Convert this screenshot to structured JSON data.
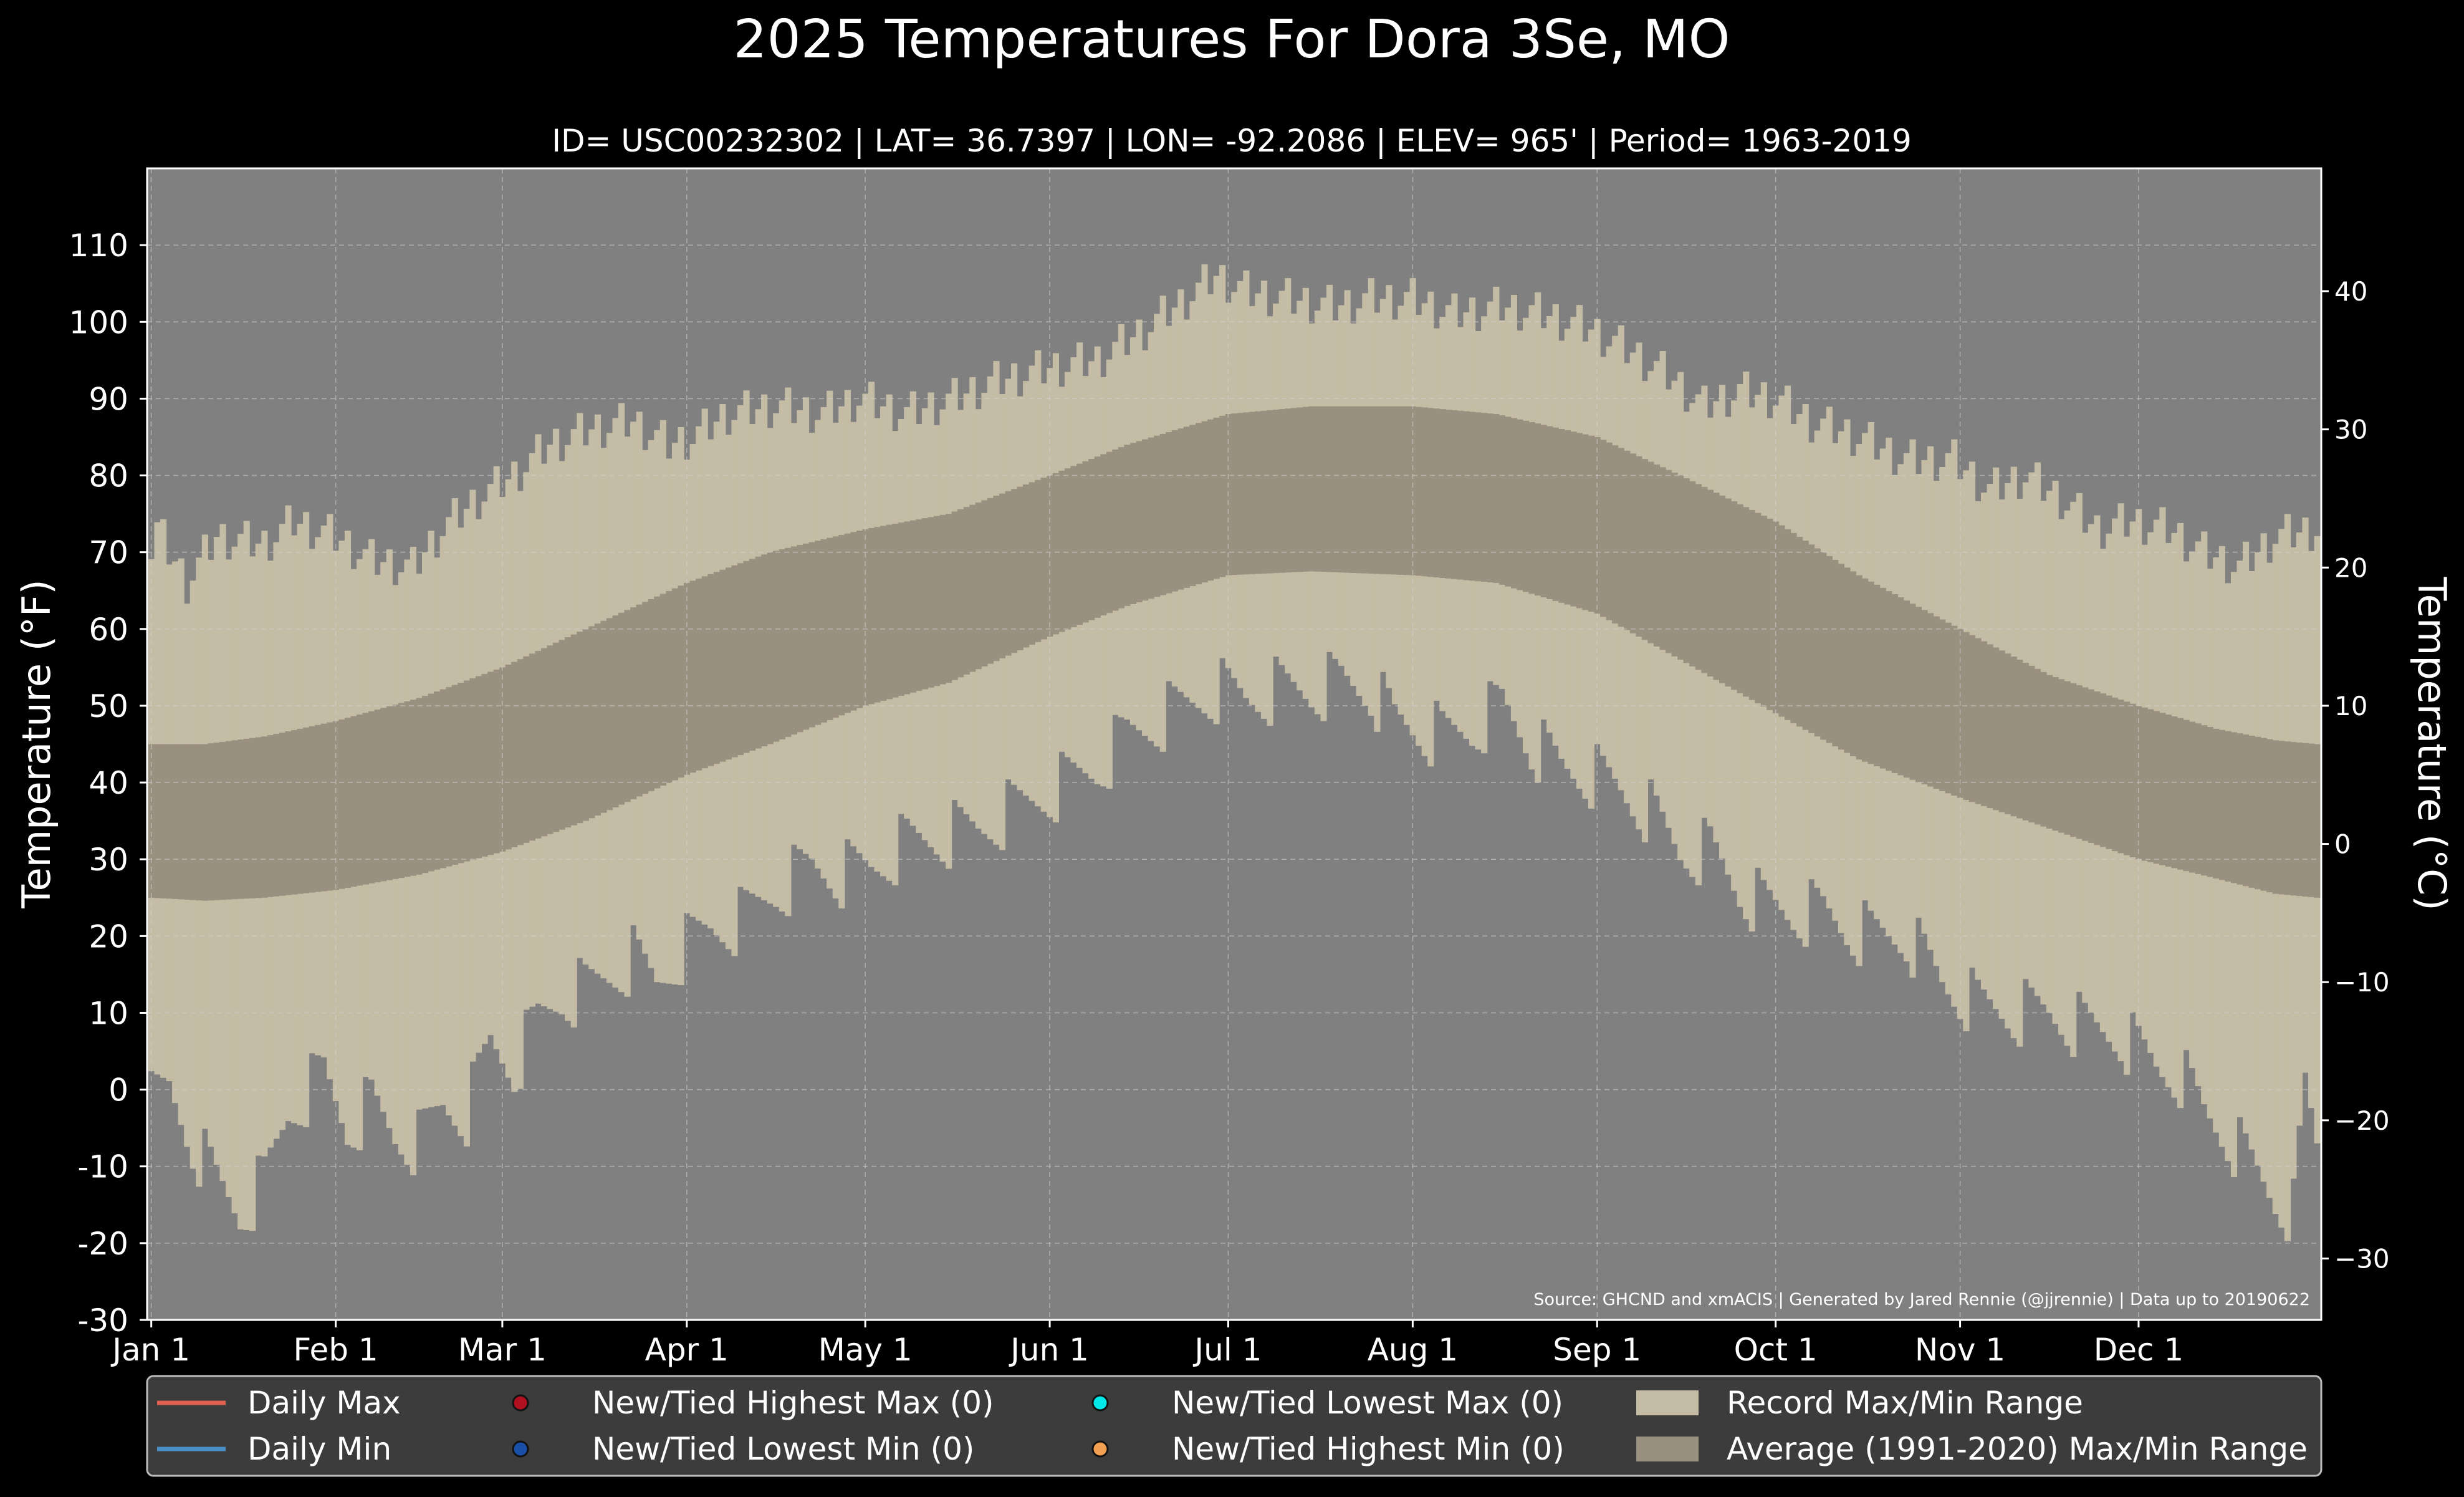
{
  "chart_data": {
    "type": "area",
    "title": "2025 Temperatures For Dora 3Se, MO",
    "subtitle": "ID= USC00232302 | LAT= 36.7397 | LON= -92.2086 | ELEV= 965' | Period= 1963-2019",
    "ylabel": "Temperature ($^\\circ$F)",
    "ylabel_display": "Temperature (°F)",
    "y2label": "Temperature (°C)",
    "ylim": [
      -30,
      120
    ],
    "y_ticks": [
      "-30",
      "-20",
      "-10",
      "0",
      "10",
      "20",
      "30",
      "40",
      "50",
      "60",
      "70",
      "80",
      "90",
      "100",
      "110"
    ],
    "y2_ticks": [
      "−30",
      "−20",
      "−10",
      "0",
      "10",
      "20",
      "30",
      "40"
    ],
    "x_ticks": [
      "Jan 1",
      "Feb 1",
      "Mar 1",
      "Apr 1",
      "May 1",
      "Jun 1",
      "Jul 1",
      "Aug 1",
      "Sep 1",
      "Oct 1",
      "Nov 1",
      "Dec 1"
    ],
    "grid": true,
    "legend_position": "bottom",
    "source": "Source: GHCND and xmACIS | Generated by Jared Rennie (@jjrennie) | Data up to 20190622",
    "legend": [
      {
        "label": "Daily Max",
        "kind": "line",
        "color": "#e06050"
      },
      {
        "label": "New/Tied Highest Max (0)",
        "kind": "dot",
        "color": "#b01020"
      },
      {
        "label": "New/Tied Lowest Max (0)",
        "kind": "dot",
        "color": "#00e8e8"
      },
      {
        "label": "Record Max/Min Range",
        "kind": "patch",
        "color": "#c5bca5"
      },
      {
        "label": "Daily Min",
        "kind": "line",
        "color": "#4a90c8"
      },
      {
        "label": "New/Tied Lowest Min (0)",
        "kind": "dot",
        "color": "#1a4fa8"
      },
      {
        "label": "New/Tied Highest Min (0)",
        "kind": "dot",
        "color": "#f0a050"
      },
      {
        "label": "Average (1991-2020) Max/Min Range",
        "kind": "patch",
        "color": "#9a9080"
      }
    ],
    "series": [
      {
        "name": "Record Max/Min Range",
        "color": "#c5bca5",
        "upper_anchors": [
          [
            1,
            70
          ],
          [
            2,
            73
          ],
          [
            7,
            66
          ],
          [
            12,
            72
          ],
          [
            20,
            71
          ],
          [
            25,
            74
          ],
          [
            32,
            72
          ],
          [
            38,
            69
          ],
          [
            45,
            68
          ],
          [
            50,
            73
          ],
          [
            56,
            77
          ],
          [
            62,
            80
          ],
          [
            68,
            84
          ],
          [
            75,
            86
          ],
          [
            82,
            87
          ],
          [
            88,
            84
          ],
          [
            92,
            85
          ],
          [
            98,
            88
          ],
          [
            106,
            89
          ],
          [
            114,
            88
          ],
          [
            120,
            90
          ],
          [
            128,
            88
          ],
          [
            136,
            90
          ],
          [
            142,
            92
          ],
          [
            152,
            94
          ],
          [
            160,
            95
          ],
          [
            168,
            99
          ],
          [
            175,
            103
          ],
          [
            180,
            106
          ],
          [
            185,
            104
          ],
          [
            192,
            103
          ],
          [
            200,
            102
          ],
          [
            206,
            103
          ],
          [
            213,
            103
          ],
          [
            220,
            101
          ],
          [
            228,
            102
          ],
          [
            235,
            101
          ],
          [
            243,
            99
          ],
          [
            250,
            96
          ],
          [
            256,
            93
          ],
          [
            262,
            89
          ],
          [
            268,
            91
          ],
          [
            274,
            90
          ],
          [
            280,
            87
          ],
          [
            288,
            85
          ],
          [
            296,
            82
          ],
          [
            304,
            82
          ],
          [
            310,
            78
          ],
          [
            316,
            80
          ],
          [
            322,
            77
          ],
          [
            328,
            73
          ],
          [
            334,
            74
          ],
          [
            340,
            73
          ],
          [
            346,
            70
          ],
          [
            352,
            68
          ],
          [
            358,
            72
          ],
          [
            365,
            73
          ]
        ],
        "lower_anchors": [
          [
            1,
            -2
          ],
          [
            4,
            0
          ],
          [
            8,
            -7
          ],
          [
            12,
            -12
          ],
          [
            16,
            -16
          ],
          [
            20,
            -12
          ],
          [
            24,
            -3
          ],
          [
            30,
            2
          ],
          [
            34,
            -5
          ],
          [
            38,
            -2
          ],
          [
            42,
            -6
          ],
          [
            46,
            -7
          ],
          [
            50,
            -2
          ],
          [
            54,
            -3
          ],
          [
            58,
            6
          ],
          [
            62,
            3
          ],
          [
            66,
            9
          ],
          [
            70,
            12
          ],
          [
            74,
            13
          ],
          [
            78,
            15
          ],
          [
            82,
            17
          ],
          [
            86,
            14
          ],
          [
            90,
            18
          ],
          [
            95,
            21
          ],
          [
            100,
            22
          ],
          [
            106,
            26
          ],
          [
            112,
            29
          ],
          [
            117,
            28
          ],
          [
            122,
            29
          ],
          [
            128,
            32
          ],
          [
            134,
            33
          ],
          [
            140,
            34
          ],
          [
            145,
            36
          ],
          [
            150,
            38
          ],
          [
            155,
            40
          ],
          [
            160,
            42
          ],
          [
            165,
            46
          ],
          [
            170,
            48
          ],
          [
            175,
            50
          ],
          [
            180,
            52
          ],
          [
            185,
            51
          ],
          [
            190,
            52
          ],
          [
            196,
            52
          ],
          [
            201,
            53
          ],
          [
            206,
            52
          ],
          [
            210,
            48
          ],
          [
            214,
            47
          ],
          [
            218,
            46
          ],
          [
            223,
            47
          ],
          [
            228,
            50
          ],
          [
            233,
            45
          ],
          [
            238,
            42
          ],
          [
            243,
            41
          ],
          [
            248,
            39
          ],
          [
            253,
            36
          ],
          [
            258,
            31
          ],
          [
            263,
            31
          ],
          [
            268,
            26
          ],
          [
            272,
            24
          ],
          [
            277,
            23
          ],
          [
            282,
            23
          ],
          [
            286,
            21
          ],
          [
            290,
            20
          ],
          [
            296,
            20
          ],
          [
            302,
            14
          ],
          [
            308,
            11
          ],
          [
            314,
            10
          ],
          [
            320,
            10
          ],
          [
            326,
            8
          ],
          [
            332,
            7
          ],
          [
            338,
            3
          ],
          [
            342,
            2
          ],
          [
            346,
            -3
          ],
          [
            350,
            -6
          ],
          [
            354,
            -10
          ],
          [
            358,
            -14
          ],
          [
            361,
            -16
          ],
          [
            363,
            0
          ],
          [
            365,
            -7
          ]
        ],
        "note": "values approximate (daily record extremes °F)"
      },
      {
        "name": "Average (1991-2020) Max/Min Range",
        "color": "#9a9080",
        "upper_anchors": [
          [
            1,
            45
          ],
          [
            10,
            45
          ],
          [
            20,
            46
          ],
          [
            32,
            48
          ],
          [
            46,
            51
          ],
          [
            60,
            55
          ],
          [
            74,
            60
          ],
          [
            91,
            66
          ],
          [
            105,
            70
          ],
          [
            121,
            73
          ],
          [
            135,
            75
          ],
          [
            152,
            80
          ],
          [
            165,
            84
          ],
          [
            182,
            88
          ],
          [
            196,
            89
          ],
          [
            213,
            89
          ],
          [
            227,
            88
          ],
          [
            244,
            85
          ],
          [
            258,
            80
          ],
          [
            274,
            74
          ],
          [
            288,
            67
          ],
          [
            305,
            60
          ],
          [
            320,
            54
          ],
          [
            335,
            50
          ],
          [
            348,
            47
          ],
          [
            358,
            45.5
          ],
          [
            365,
            45
          ]
        ],
        "lower_anchors": [
          [
            1,
            25
          ],
          [
            10,
            24.6
          ],
          [
            20,
            25
          ],
          [
            32,
            26
          ],
          [
            46,
            28
          ],
          [
            60,
            31
          ],
          [
            74,
            35
          ],
          [
            91,
            41
          ],
          [
            105,
            45
          ],
          [
            121,
            50
          ],
          [
            135,
            53
          ],
          [
            152,
            59
          ],
          [
            165,
            63
          ],
          [
            182,
            67
          ],
          [
            196,
            67.5
          ],
          [
            213,
            67
          ],
          [
            227,
            66
          ],
          [
            244,
            62
          ],
          [
            258,
            56
          ],
          [
            274,
            49
          ],
          [
            288,
            43
          ],
          [
            305,
            38
          ],
          [
            320,
            34
          ],
          [
            335,
            30
          ],
          [
            348,
            27.5
          ],
          [
            358,
            25.5
          ],
          [
            365,
            25
          ]
        ]
      }
    ]
  }
}
